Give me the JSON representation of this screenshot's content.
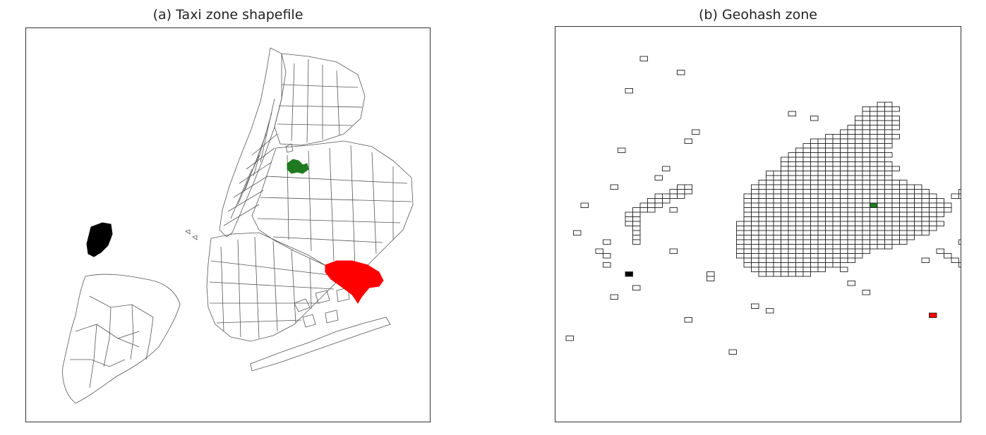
{
  "panels": {
    "a": {
      "title": "(a) Taxi zone shapefile"
    },
    "b": {
      "title": "(b) Geohash zone"
    }
  },
  "colors": {
    "outline": "#444444",
    "highlight_green": "#1f7a1f",
    "highlight_red": "#ff0000",
    "highlight_black": "#000000"
  }
}
